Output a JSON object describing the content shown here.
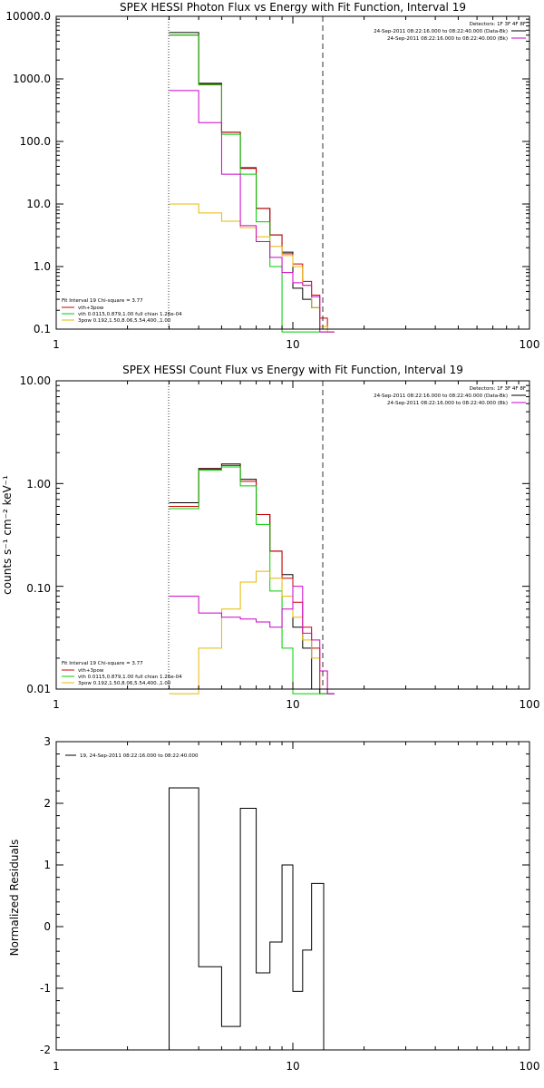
{
  "chart_data": [
    {
      "type": "line",
      "title": "SPEX HESSI Photon Flux vs Energy with Fit Function, Interval 19",
      "xlabel": "",
      "ylabel": "",
      "xscale": "log",
      "yscale": "log",
      "xlim": [
        1,
        100
      ],
      "ylim": [
        0.1,
        10000
      ],
      "x_tick_labels": [
        "1",
        "10",
        "100"
      ],
      "y_tick_labels": [
        "0.1",
        "1.0",
        "10.0",
        "100.0",
        "1000.0",
        "10000.0"
      ],
      "fit_range_lines": [
        3,
        13.5
      ],
      "top_legend": {
        "lines": [
          "Detectors: 1F 3F 4F 8F",
          "24-Sep-2011 08:22:16.000 to 08:22:40.000 (Data-Bk)",
          "24-Sep-2011 08:22:16.000 to 08:22:40.000 (Bk)"
        ],
        "colors": [
          "#000000",
          "#000000",
          "#cc00cc"
        ]
      },
      "fit_legend": {
        "header": "Fit Interval 19   Chi-square = 3.77",
        "lines": [
          "vth+3pow",
          "vth 0.0115,0.879,1.00  full chian 1.26e-04",
          "3pow 0.192,1.50,8.06,5.54,400.,1.00"
        ],
        "colors": [
          "#cc0000",
          "#00cc00",
          "#e6b800"
        ]
      },
      "bin_edges": [
        3,
        4,
        5,
        6,
        7,
        8,
        9,
        10,
        11,
        12,
        13,
        14,
        15
      ],
      "series": [
        {
          "name": "Data-Bk",
          "color": "#000000",
          "values": [
            5500,
            850,
            140,
            38,
            8.5,
            3.2,
            1.7,
            0.45,
            0.3,
            0.22,
            0.1,
            0.1
          ]
        },
        {
          "name": "vth+3pow",
          "color": "#cc0000",
          "values": [
            5000,
            820,
            140,
            37,
            8.5,
            3.2,
            1.6,
            1.1,
            0.58,
            0.35,
            0.15,
            0.1
          ]
        },
        {
          "name": "vth",
          "color": "#00cc00",
          "values": [
            5000,
            800,
            130,
            30,
            5.2,
            1.0,
            0.09,
            0.09,
            0.09,
            0.09,
            0.09,
            0.09
          ]
        },
        {
          "name": "3pow",
          "color": "#e6b800",
          "values": [
            10,
            7.2,
            5.3,
            4.2,
            3.0,
            2.1,
            1.5,
            1.0,
            0.5,
            0.22,
            0.11,
            0.09
          ]
        },
        {
          "name": "Bk",
          "color": "#cc00cc",
          "values": [
            650,
            200,
            30,
            4.5,
            2.5,
            1.4,
            0.8,
            0.55,
            0.5,
            0.33,
            0.09,
            0.09
          ]
        }
      ]
    },
    {
      "type": "line",
      "title": "SPEX HESSI Count Flux vs Energy with Fit Function, Interval 19",
      "xlabel": "",
      "ylabel": "counts s⁻¹ cm⁻² keV⁻¹",
      "xscale": "log",
      "yscale": "log",
      "xlim": [
        1,
        100
      ],
      "ylim": [
        0.01,
        10
      ],
      "x_tick_labels": [
        "1",
        "10",
        "100"
      ],
      "y_tick_labels": [
        "0.01",
        "0.10",
        "1.00",
        "10.00"
      ],
      "fit_range_lines": [
        3,
        13.5
      ],
      "top_legend": {
        "lines": [
          "Detectors: 1F 3F 4F 8F",
          "24-Sep-2011 08:22:16.000 to 08:22:40.000 (Data-Bk)",
          "24-Sep-2011 08:22:16.000 to 08:22:40.000 (Bk)"
        ],
        "colors": [
          "#000000",
          "#000000",
          "#cc00cc"
        ]
      },
      "fit_legend": {
        "header": "Fit Interval 19   Chi-square = 3.77",
        "lines": [
          "vth+3pow",
          "vth 0.0115,0.879,1.00  full chian 1.26e-04",
          "3pow 0.192,1.50,8.06,5.54,400.,1.00"
        ],
        "colors": [
          "#cc0000",
          "#00cc00",
          "#e6b800"
        ]
      },
      "bin_edges": [
        3,
        4,
        5,
        6,
        7,
        8,
        9,
        10,
        11,
        12,
        13,
        14,
        15
      ],
      "series": [
        {
          "name": "Data-Bk",
          "color": "#000000",
          "values": [
            0.65,
            1.4,
            1.55,
            1.1,
            0.5,
            0.22,
            0.13,
            0.04,
            0.025,
            0.01,
            0.009,
            0.009
          ]
        },
        {
          "name": "vth+3pow",
          "color": "#cc0000",
          "values": [
            0.6,
            1.38,
            1.5,
            1.05,
            0.5,
            0.22,
            0.12,
            0.07,
            0.04,
            0.025,
            0.01,
            0.009
          ]
        },
        {
          "name": "vth",
          "color": "#00cc00",
          "values": [
            0.57,
            1.35,
            1.45,
            0.95,
            0.4,
            0.09,
            0.025,
            0.009,
            0.009,
            0.009,
            0.009,
            0.009
          ]
        },
        {
          "name": "3pow",
          "color": "#e6b800",
          "values": [
            0.009,
            0.025,
            0.06,
            0.11,
            0.14,
            0.12,
            0.08,
            0.05,
            0.03,
            0.02,
            0.015,
            0.01
          ]
        },
        {
          "name": "Bk",
          "color": "#cc00cc",
          "values": [
            0.08,
            0.055,
            0.05,
            0.048,
            0.045,
            0.04,
            0.06,
            0.1,
            0.035,
            0.03,
            0.015,
            0.009
          ]
        }
      ]
    },
    {
      "type": "line",
      "title": "",
      "xlabel": "",
      "ylabel": "Normalized Residuals",
      "xscale": "log",
      "yscale": "linear",
      "xlim": [
        1,
        100
      ],
      "ylim": [
        -2,
        3
      ],
      "x_tick_labels": [
        "1",
        "10",
        "100"
      ],
      "y_tick_labels": [
        "-2",
        "-1",
        "0",
        "1",
        "2",
        "3"
      ],
      "legend": "19, 24-Sep-2011 08:22:16.000 to 08:22:40.000",
      "bin_edges": [
        3,
        4,
        5,
        6,
        7,
        8,
        9,
        10,
        11,
        12,
        13,
        13.5
      ],
      "values": [
        2.25,
        -0.65,
        -1.62,
        1.92,
        -0.75,
        -0.25,
        1.0,
        -1.05,
        -0.38,
        0.7,
        0.7
      ]
    }
  ]
}
